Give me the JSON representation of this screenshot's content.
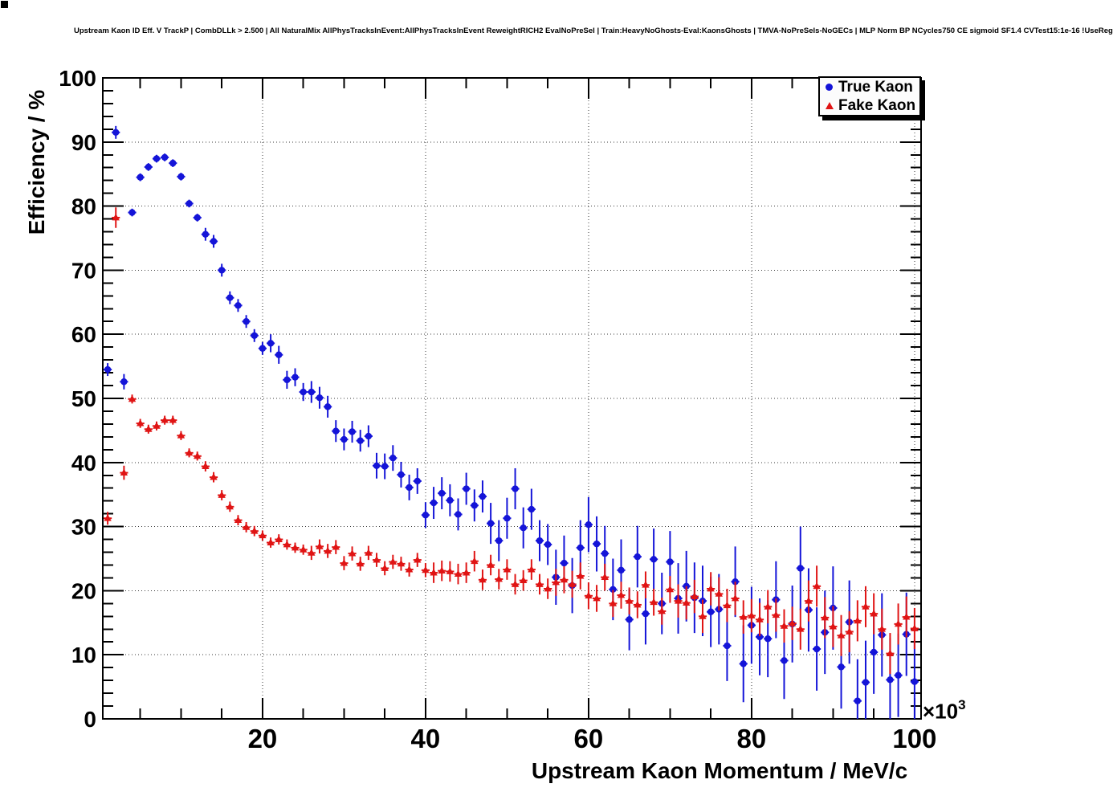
{
  "header": {
    "title": "Upstream Kaon ID Eff. V TrackP | CombDLLk > 2.500 | All NaturalMix AllPhysTracksInEvent:AllPhysTracksInEvent ReweightRICH2 EvalNoPreSel | Train:HeavyNoGhosts-Eval:KaonsGhosts | TMVA-NoPreSels-NoGECs | MLP Norm BP NCycles750 CE sigmoid SF1.4 CVTest15:1e-16 !UseReg"
  },
  "legend": {
    "items": [
      {
        "label": "True Kaon",
        "marker": "circle",
        "color": "#1414d8"
      },
      {
        "label": "Fake Kaon",
        "marker": "triangle",
        "color": "#e01414"
      }
    ]
  },
  "axes": {
    "y": {
      "title": "Efficiency / %",
      "tick_labels": [
        "0",
        "10",
        "20",
        "30",
        "40",
        "50",
        "60",
        "70",
        "80",
        "90",
        "100"
      ]
    },
    "x": {
      "title": "Upstream Kaon Momentum / MeV/c",
      "tick_labels": [
        "20",
        "40",
        "60",
        "80",
        "100"
      ],
      "multiplier_base": "×10",
      "multiplier_exp": "3"
    }
  },
  "chart_data": {
    "type": "scatter",
    "title": "Upstream Kaon ID Eff. V TrackP | CombDLLk > 2.500 | All NaturalMix AllPhysTracksInEvent:AllPhysTracksInEvent ReweightRICH2 EvalNoPreSel | Train:HeavyNoGhosts-Eval:KaonsGhosts | TMVA-NoPreSels-NoGECs | MLP Norm BP NCycles750 CE sigmoid SF1.4 CVTest15:1e-16 !UseReg",
    "xlabel": "Upstream Kaon Momentum / MeV/c",
    "ylabel": "Efficiency / %",
    "x_unit_multiplier": "×10^3",
    "xlim": [
      0.4,
      100.8
    ],
    "ylim": [
      0,
      100
    ],
    "x_major_ticks": [
      20,
      40,
      60,
      80,
      100
    ],
    "x_minor_step": 5,
    "y_major_step": 10,
    "y_minor_step": 2,
    "grid": true,
    "legend_position": "top-right",
    "x": [
      1,
      2,
      3,
      4,
      5,
      6,
      7,
      8,
      9,
      10,
      11,
      12,
      13,
      14,
      15,
      16,
      17,
      18,
      19,
      20,
      21,
      22,
      23,
      24,
      25,
      26,
      27,
      28,
      29,
      30,
      31,
      32,
      33,
      34,
      35,
      36,
      37,
      38,
      39,
      40,
      41,
      42,
      43,
      44,
      45,
      46,
      47,
      48,
      49,
      50,
      51,
      52,
      53,
      54,
      55,
      56,
      57,
      58,
      59,
      60,
      61,
      62,
      63,
      64,
      65,
      66,
      67,
      68,
      69,
      70,
      71,
      72,
      73,
      74,
      75,
      76,
      77,
      78,
      79,
      80,
      81,
      82,
      83,
      84,
      85,
      86,
      87,
      88,
      89,
      90,
      91,
      92,
      93,
      94,
      95,
      96,
      97,
      98,
      99,
      100
    ],
    "series": [
      {
        "name": "True Kaon",
        "marker": "circle",
        "color": "#1414d8",
        "xerr": 0.5,
        "values": [
          54.5,
          91.5,
          52.6,
          79.0,
          84.5,
          86.1,
          87.4,
          87.6,
          86.7,
          84.6,
          80.4,
          78.2,
          75.6,
          74.5,
          70.0,
          65.7,
          64.5,
          62.0,
          59.8,
          57.8,
          58.6,
          56.8,
          52.9,
          53.3,
          51.0,
          51.0,
          50.1,
          48.7,
          44.9,
          43.6,
          44.8,
          43.4,
          44.1,
          39.5,
          39.4,
          40.7,
          38.1,
          36.1,
          37.1,
          31.8,
          33.7,
          35.2,
          34.1,
          31.9,
          35.9,
          33.3,
          34.7,
          30.5,
          27.8,
          31.3,
          35.9,
          29.8,
          32.7,
          27.8,
          27.2,
          22.1,
          24.3,
          20.8,
          26.7,
          30.3,
          27.3,
          25.8,
          20.2,
          23.2,
          15.5,
          25.3,
          16.4,
          24.9,
          18.0,
          24.5,
          18.8,
          20.7,
          18.9,
          18.4,
          16.7,
          17.1,
          11.4,
          21.4,
          8.6,
          14.6,
          12.8,
          12.5,
          18.6,
          9.1,
          14.8,
          23.5,
          17.0,
          10.9,
          13.5,
          17.3,
          8.1,
          15.1,
          2.8,
          5.7,
          10.4,
          13.1,
          6.1,
          6.8,
          13.2,
          5.8
        ],
        "yerr": [
          1.0,
          1.0,
          1.2,
          0.6,
          0.6,
          0.6,
          0.6,
          0.6,
          0.6,
          0.6,
          0.6,
          0.6,
          1.0,
          1.0,
          1.0,
          1.0,
          1.0,
          1.0,
          1.0,
          1.0,
          1.4,
          1.4,
          1.4,
          1.4,
          1.4,
          1.7,
          1.7,
          1.7,
          1.7,
          1.7,
          1.7,
          1.7,
          1.7,
          2.0,
          2.0,
          2.0,
          2.0,
          2.0,
          2.0,
          2.0,
          2.5,
          2.5,
          2.5,
          2.5,
          2.5,
          2.5,
          2.5,
          3.2,
          3.2,
          3.2,
          3.2,
          3.2,
          3.2,
          3.2,
          3.2,
          4.3,
          4.3,
          4.3,
          4.3,
          4.3,
          4.3,
          4.3,
          4.8,
          4.8,
          4.8,
          4.8,
          4.8,
          4.8,
          4.8,
          4.8,
          5.5,
          5.5,
          5.5,
          5.5,
          5.5,
          5.5,
          5.5,
          5.5,
          6.0,
          6.0,
          6.0,
          6.0,
          6.0,
          6.0,
          6.0,
          6.5,
          6.5,
          6.5,
          6.5,
          6.5,
          6.5,
          6.5,
          6.5,
          6.5,
          6.5,
          6.5,
          6.5,
          6.5,
          6.5,
          6.5
        ]
      },
      {
        "name": "Fake Kaon",
        "marker": "triangle",
        "color": "#e01414",
        "xerr": 0.5,
        "values": [
          31.3,
          78.2,
          38.4,
          49.9,
          46.1,
          45.2,
          45.7,
          46.6,
          46.6,
          44.2,
          41.5,
          41.0,
          39.4,
          37.7,
          34.9,
          33.1,
          31.0,
          29.9,
          29.3,
          28.6,
          27.5,
          28.0,
          27.2,
          26.7,
          26.4,
          25.9,
          26.9,
          26.2,
          26.8,
          24.3,
          25.8,
          24.2,
          25.9,
          24.8,
          23.5,
          24.5,
          24.2,
          23.3,
          24.8,
          23.2,
          22.8,
          23.1,
          23.0,
          22.6,
          22.8,
          24.6,
          21.7,
          24.0,
          21.8,
          23.3,
          21.0,
          21.6,
          23.3,
          21.0,
          20.3,
          21.3,
          21.7,
          21.0,
          22.3,
          19.2,
          18.8,
          22.1,
          18.0,
          19.3,
          18.4,
          17.8,
          20.9,
          18.2,
          16.8,
          20.2,
          18.4,
          18.1,
          19.1,
          16.0,
          20.3,
          19.5,
          17.7,
          18.8,
          15.9,
          16.1,
          15.5,
          17.5,
          16.2,
          14.5,
          14.9,
          14.0,
          18.4,
          20.7,
          15.8,
          14.4,
          13.0,
          13.6,
          15.3,
          17.5,
          16.4,
          14.0,
          10.2,
          14.8,
          15.9,
          14.1
        ],
        "yerr": [
          1.0,
          1.6,
          1.1,
          0.7,
          0.7,
          0.7,
          0.7,
          0.7,
          0.7,
          0.7,
          0.7,
          0.7,
          0.8,
          0.8,
          0.8,
          0.8,
          0.8,
          0.8,
          0.8,
          0.8,
          0.8,
          0.8,
          0.8,
          0.8,
          0.8,
          1.1,
          1.1,
          1.1,
          1.1,
          1.1,
          1.1,
          1.1,
          1.1,
          1.1,
          1.1,
          1.1,
          1.1,
          1.1,
          1.1,
          1.1,
          1.6,
          1.6,
          1.6,
          1.6,
          1.6,
          1.6,
          1.6,
          1.6,
          1.6,
          1.6,
          1.6,
          1.6,
          1.6,
          1.6,
          1.6,
          2.1,
          2.1,
          2.1,
          2.1,
          2.1,
          2.1,
          2.1,
          2.1,
          2.1,
          2.1,
          2.1,
          2.1,
          2.1,
          2.1,
          2.1,
          2.6,
          2.6,
          2.6,
          2.6,
          2.6,
          2.6,
          2.6,
          2.6,
          2.6,
          2.6,
          2.6,
          2.6,
          2.6,
          2.6,
          2.6,
          3.2,
          3.2,
          3.2,
          3.2,
          3.2,
          3.2,
          3.2,
          3.2,
          3.2,
          3.2,
          3.2,
          3.2,
          3.2,
          3.2,
          3.2
        ]
      }
    ]
  }
}
